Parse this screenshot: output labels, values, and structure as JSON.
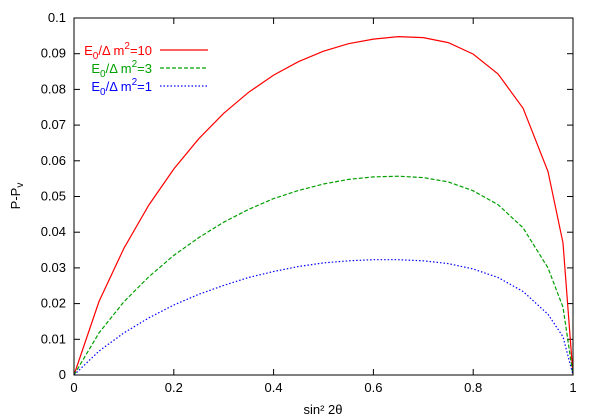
{
  "chart_data": {
    "type": "line",
    "xlabel": "sin² 2θ",
    "ylabel": "P-P_v",
    "xlim": [
      0,
      1
    ],
    "ylim": [
      0,
      0.1
    ],
    "x_ticks": [
      "0",
      "0.2",
      "0.4",
      "0.6",
      "0.8",
      "1"
    ],
    "y_ticks": [
      "0",
      "0.01",
      "0.02",
      "0.03",
      "0.04",
      "0.05",
      "0.06",
      "0.07",
      "0.08",
      "0.09",
      "0.1"
    ],
    "grid": false,
    "legend_position": "top-left",
    "x": [
      0,
      0.05,
      0.1,
      0.15,
      0.2,
      0.25,
      0.3,
      0.35,
      0.4,
      0.45,
      0.5,
      0.55,
      0.6,
      0.65,
      0.7,
      0.75,
      0.8,
      0.85,
      0.9,
      0.95,
      0.98,
      1.0
    ],
    "series": [
      {
        "name": "E0/Δ m²=10",
        "color": "#ff0000",
        "dash": "solid",
        "values": [
          0,
          0.0206,
          0.0355,
          0.0476,
          0.0577,
          0.0662,
          0.0733,
          0.0792,
          0.084,
          0.0878,
          0.0907,
          0.0928,
          0.0941,
          0.0948,
          0.0945,
          0.0931,
          0.0899,
          0.0843,
          0.0747,
          0.057,
          0.037,
          0.0
        ]
      },
      {
        "name": "E0/Δ m²=3",
        "color": "#00a000",
        "dash": "dashed",
        "values": [
          0,
          0.0118,
          0.0205,
          0.0275,
          0.0335,
          0.0385,
          0.0428,
          0.0464,
          0.0494,
          0.0517,
          0.0535,
          0.0548,
          0.0555,
          0.0557,
          0.0553,
          0.0541,
          0.0516,
          0.0477,
          0.0412,
          0.03,
          0.019,
          0.0
        ]
      },
      {
        "name": "E0/Δ m²=1",
        "color": "#0000ff",
        "dash": "dotted",
        "values": [
          0,
          0.0067,
          0.0118,
          0.016,
          0.0196,
          0.0226,
          0.0251,
          0.0273,
          0.029,
          0.0304,
          0.0314,
          0.032,
          0.0323,
          0.0323,
          0.032,
          0.0312,
          0.0297,
          0.0273,
          0.0234,
          0.017,
          0.0107,
          0.0
        ]
      }
    ]
  }
}
